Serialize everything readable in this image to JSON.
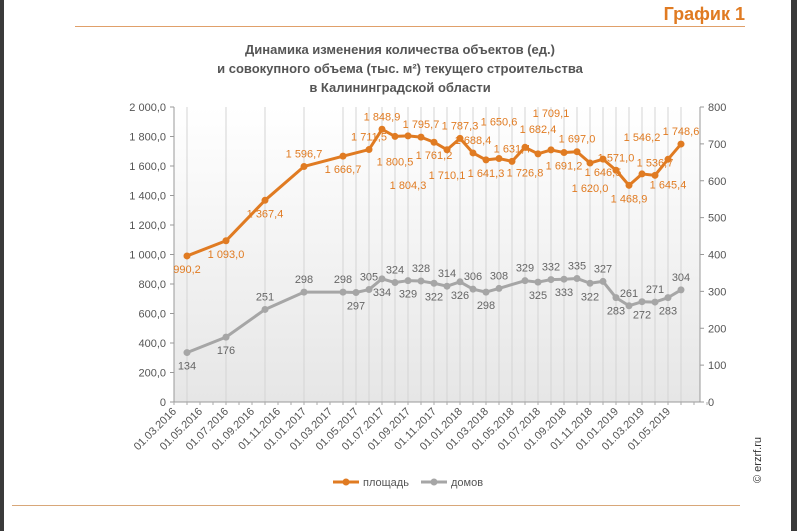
{
  "figure_label": "График 1",
  "copyright": "© erzrf.ru",
  "chart_data": {
    "type": "line",
    "title": [
      "Динамика изменения количества объектов (ед.)",
      "и совокупного объема (тыс. м²) текущего строительства",
      "в Калининградской области"
    ],
    "x_tick_labels": [
      "01.03.2016",
      "01.05.2016",
      "01.07.2016",
      "01.09.2016",
      "01.11.2016",
      "01.01.2017",
      "01.03.2017",
      "01.05.2017",
      "01.07.2017",
      "01.09.2017",
      "01.11.2017",
      "01.01.2018",
      "01.03.2018",
      "01.05.2018",
      "01.07.2018",
      "01.09.2018",
      "01.11.2018",
      "01.01.2019",
      "01.03.2019",
      "01.05.2019"
    ],
    "y_left": {
      "range": [
        0,
        2000
      ],
      "ticks": [
        "0",
        "200,0",
        "400,0",
        "600,0",
        "800,0",
        "1 000,0",
        "1 200,0",
        "1 400,0",
        "1 600,0",
        "1 800,0",
        "2 000,0"
      ]
    },
    "y_right": {
      "range": [
        0,
        800
      ],
      "ticks": [
        "0",
        "100",
        "200",
        "300",
        "400",
        "500",
        "600",
        "700",
        "800"
      ]
    },
    "grid": "vertical",
    "legend_position": "bottom",
    "series": [
      {
        "name": "площадь",
        "axis": "left",
        "color": "#e07b22",
        "x": [
          "01.04.2016",
          "01.07.2016",
          "01.10.2016",
          "01.01.2017",
          "01.04.2017",
          "01.06.2017",
          "01.07.2017",
          "01.08.2017",
          "01.09.2017",
          "01.10.2017",
          "01.11.2017",
          "01.12.2017",
          "01.01.2018",
          "01.02.2018",
          "01.03.2018",
          "01.04.2018",
          "01.05.2018",
          "01.06.2018",
          "01.07.2018",
          "01.08.2018",
          "01.09.2018",
          "01.10.2018",
          "01.11.2018",
          "01.12.2018",
          "01.01.2019",
          "01.02.2019",
          "01.03.2019",
          "01.04.2019",
          "01.05.2019",
          "01.06.2019"
        ],
        "values": [
          990.2,
          1093.0,
          1367.4,
          1596.7,
          1666.7,
          1711.5,
          1848.9,
          1800.5,
          1804.3,
          1795.7,
          1761.2,
          1710.1,
          1787.3,
          1688.4,
          1641.3,
          1650.6,
          1631.4,
          1726.8,
          1682.4,
          1709.1,
          1691.2,
          1697.0,
          1620.0,
          1646.5,
          1571.0,
          1468.9,
          1546.2,
          1536.7,
          1645.4,
          1748.6
        ],
        "labels": [
          "990,2",
          "1 093,0",
          "1 367,4",
          "1 596,7",
          "1 666,7",
          "1 711,5",
          "1 848,9",
          "1 800,5",
          "1 804,3",
          "1 795,7",
          "1 761,2",
          "1 710,1",
          "1 787,3",
          "1 688,4",
          "1 641,3",
          "1 650,6",
          "1 631,4",
          "1 726,8",
          "1 682,4",
          "1 709,1",
          "1 691,2",
          "1 697,0",
          "1 620,0",
          "1 646,5",
          "1 571,0",
          "1 468,9",
          "1 546,2",
          "1 536,7",
          "1 645,4",
          "1 748,6"
        ]
      },
      {
        "name": "домов",
        "axis": "right",
        "color": "#a6a6a6",
        "x": [
          "01.04.2016",
          "01.07.2016",
          "01.10.2016",
          "01.01.2017",
          "01.04.2017",
          "01.05.2017",
          "01.06.2017",
          "01.07.2017",
          "01.08.2017",
          "01.09.2017",
          "01.10.2017",
          "01.11.2017",
          "01.12.2017",
          "01.01.2018",
          "01.02.2018",
          "01.03.2018",
          "01.04.2018",
          "01.06.2018",
          "01.07.2018",
          "01.08.2018",
          "01.09.2018",
          "01.10.2018",
          "01.11.2018",
          "01.12.2018",
          "01.01.2019",
          "01.02.2019",
          "01.03.2019",
          "01.04.2019",
          "01.05.2019",
          "01.06.2019"
        ],
        "values": [
          134,
          176,
          251,
          298,
          298,
          297,
          305,
          334,
          324,
          329,
          328,
          322,
          314,
          326,
          306,
          298,
          308,
          329,
          325,
          332,
          333,
          335,
          322,
          327,
          283,
          261,
          272,
          271,
          283,
          304
        ],
        "labels": [
          "134",
          "176",
          "251",
          "298",
          "298",
          "297",
          "305",
          "334",
          "324",
          "329",
          "328",
          "322",
          "314",
          "326",
          "306",
          "298",
          "308",
          "329",
          "325",
          "332",
          "333",
          "335",
          "322",
          "327",
          "283",
          "261",
          "272",
          "271",
          "283",
          "304"
        ]
      }
    ]
  }
}
